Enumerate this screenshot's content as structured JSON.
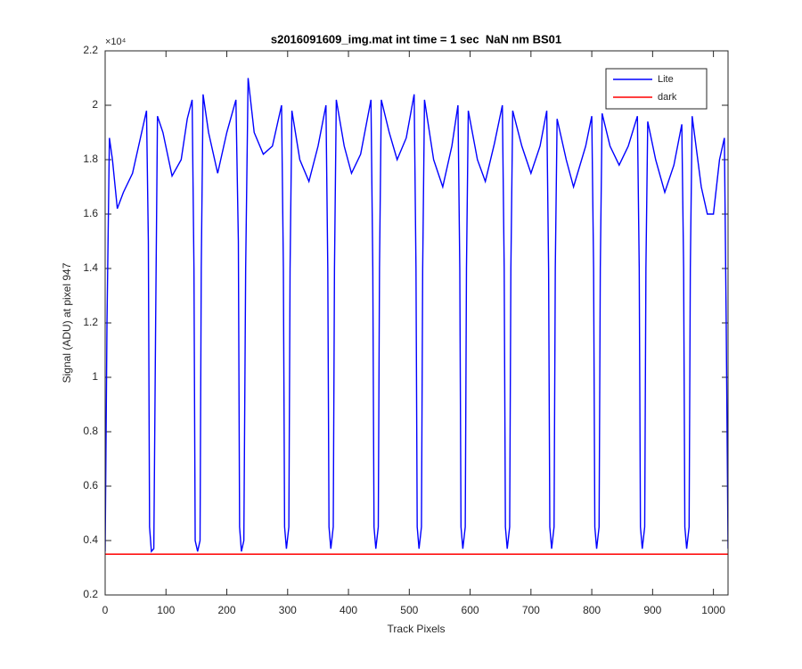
{
  "chart_data": {
    "type": "line",
    "title": "s2016091609_img.mat int time = 1 sec  NaN nm BS01",
    "xlabel": "Track Pixels",
    "ylabel": "Signal (ADU) at pixel 947",
    "y_exponent_label": "×10⁴",
    "xlim": [
      0,
      1024
    ],
    "ylim": [
      0.2,
      2.2
    ],
    "xticks": [
      0,
      100,
      200,
      300,
      400,
      500,
      600,
      700,
      800,
      900,
      1000
    ],
    "yticks": [
      0.2,
      0.4,
      0.6,
      0.8,
      1,
      1.2,
      1.4,
      1.6,
      1.8,
      2,
      2.2
    ],
    "legend": "upper right",
    "series": [
      {
        "name": "Lite",
        "color": "#0000ff",
        "x": [
          0,
          3,
          7,
          12,
          20,
          30,
          45,
          60,
          68,
          71,
          73,
          76,
          80,
          83,
          86,
          95,
          110,
          125,
          135,
          143,
          146,
          148,
          152,
          156,
          158,
          161,
          170,
          185,
          200,
          215,
          219,
          221,
          224,
          228,
          231,
          235,
          245,
          260,
          275,
          290,
          293,
          295,
          298,
          302,
          304,
          307,
          320,
          335,
          350,
          363,
          366,
          368,
          371,
          375,
          377,
          380,
          393,
          405,
          420,
          437,
          440,
          442,
          445,
          449,
          451,
          454,
          467,
          480,
          495,
          508,
          511,
          513,
          516,
          520,
          522,
          525,
          540,
          555,
          570,
          580,
          583,
          585,
          588,
          592,
          594,
          597,
          612,
          625,
          640,
          653,
          656,
          658,
          661,
          665,
          667,
          670,
          685,
          700,
          715,
          726,
          729,
          731,
          734,
          738,
          740,
          743,
          758,
          770,
          790,
          800,
          803,
          805,
          808,
          812,
          814,
          817,
          830,
          845,
          860,
          875,
          878,
          880,
          883,
          887,
          889,
          892,
          905,
          920,
          935,
          948,
          951,
          953,
          956,
          960,
          962,
          965,
          980,
          990,
          1000,
          1010,
          1018,
          1021,
          1024
        ],
        "values": [
          0.36,
          1.2,
          1.88,
          1.8,
          1.62,
          1.68,
          1.75,
          1.9,
          1.98,
          1.5,
          0.45,
          0.36,
          0.37,
          1.2,
          1.96,
          1.9,
          1.74,
          1.8,
          1.95,
          2.02,
          1.4,
          0.4,
          0.36,
          0.4,
          1.4,
          2.04,
          1.9,
          1.75,
          1.9,
          2.02,
          1.5,
          0.45,
          0.36,
          0.4,
          1.4,
          2.1,
          1.9,
          1.82,
          1.85,
          2.0,
          1.4,
          0.45,
          0.37,
          0.45,
          1.4,
          1.98,
          1.8,
          1.72,
          1.85,
          2.0,
          1.4,
          0.45,
          0.37,
          0.45,
          1.4,
          2.02,
          1.85,
          1.75,
          1.82,
          2.02,
          1.4,
          0.45,
          0.37,
          0.45,
          1.4,
          2.02,
          1.9,
          1.8,
          1.88,
          2.04,
          1.4,
          0.45,
          0.37,
          0.45,
          1.4,
          2.02,
          1.8,
          1.7,
          1.85,
          2.0,
          1.4,
          0.45,
          0.37,
          0.45,
          1.4,
          1.98,
          1.8,
          1.72,
          1.86,
          2.0,
          1.4,
          0.45,
          0.37,
          0.45,
          1.4,
          1.98,
          1.85,
          1.75,
          1.85,
          1.98,
          1.4,
          0.45,
          0.37,
          0.45,
          1.4,
          1.95,
          1.8,
          1.7,
          1.85,
          1.96,
          1.4,
          0.45,
          0.37,
          0.45,
          1.4,
          1.97,
          1.85,
          1.78,
          1.85,
          1.96,
          1.4,
          0.45,
          0.37,
          0.45,
          1.4,
          1.94,
          1.8,
          1.68,
          1.78,
          1.93,
          1.4,
          0.45,
          0.37,
          0.45,
          1.4,
          1.96,
          1.7,
          1.6,
          1.6,
          1.8,
          1.88,
          1.2,
          0.37
        ]
      },
      {
        "name": "dark",
        "color": "#ff0000",
        "x": [
          0,
          256,
          512,
          768,
          1024
        ],
        "values": [
          0.35,
          0.35,
          0.35,
          0.35,
          0.35
        ]
      }
    ]
  }
}
